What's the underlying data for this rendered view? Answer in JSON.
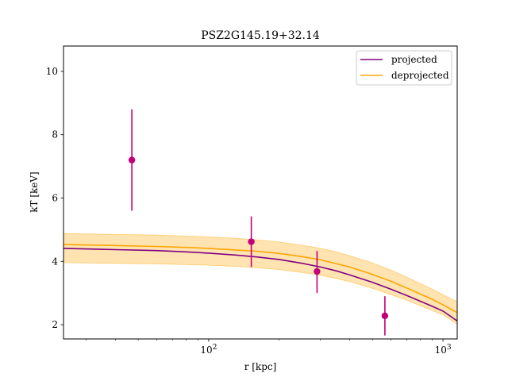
{
  "chart_data": {
    "type": "line",
    "title": "PSZ2G145.19+32.14",
    "xlabel": "r [kpc]",
    "ylabel": "kT [keV]",
    "xscale": "log",
    "xlim": [
      24,
      1150
    ],
    "ylim": [
      1.55,
      10.8
    ],
    "grid": false,
    "legend_position": "top-right",
    "x_ticks": [
      {
        "value": 100,
        "base": "10",
        "exp": "2"
      },
      {
        "value": 1000,
        "base": "10",
        "exp": "3"
      }
    ],
    "y_ticks": [
      2,
      4,
      6,
      8,
      10
    ],
    "points": {
      "name": "",
      "color": "#c20078",
      "x": [
        47,
        152,
        290,
        565
      ],
      "y": [
        7.2,
        4.62,
        3.68,
        2.28
      ],
      "yerr_low": [
        1.6,
        0.8,
        0.68,
        0.62
      ],
      "yerr_high": [
        1.6,
        0.8,
        0.65,
        0.62
      ]
    },
    "series": [
      {
        "name": "projected",
        "color": "#800080",
        "x": [
          24,
          40,
          60,
          80,
          100,
          130,
          160,
          200,
          250,
          300,
          350,
          400,
          500,
          600,
          700,
          800,
          900,
          1000,
          1150
        ],
        "y": [
          4.41,
          4.37,
          4.34,
          4.3,
          4.26,
          4.2,
          4.14,
          4.06,
          3.94,
          3.82,
          3.7,
          3.57,
          3.34,
          3.12,
          2.92,
          2.74,
          2.58,
          2.43,
          2.12
        ]
      },
      {
        "name": "deprojected",
        "color": "#ffa500",
        "x": [
          24,
          40,
          60,
          80,
          100,
          130,
          160,
          200,
          250,
          300,
          350,
          400,
          500,
          600,
          700,
          800,
          900,
          1000,
          1150
        ],
        "y": [
          4.53,
          4.5,
          4.47,
          4.44,
          4.41,
          4.36,
          4.32,
          4.25,
          4.15,
          4.05,
          3.93,
          3.82,
          3.59,
          3.37,
          3.16,
          2.97,
          2.8,
          2.63,
          2.38
        ],
        "band_low": [
          3.96,
          3.94,
          3.92,
          3.9,
          3.88,
          3.84,
          3.8,
          3.74,
          3.65,
          3.56,
          3.46,
          3.36,
          3.15,
          2.95,
          2.77,
          2.6,
          2.45,
          2.31,
          2.02
        ],
        "band_high": [
          4.88,
          4.85,
          4.83,
          4.8,
          4.77,
          4.73,
          4.68,
          4.61,
          4.51,
          4.41,
          4.3,
          4.18,
          3.95,
          3.72,
          3.5,
          3.3,
          3.12,
          2.95,
          2.72
        ]
      }
    ]
  }
}
